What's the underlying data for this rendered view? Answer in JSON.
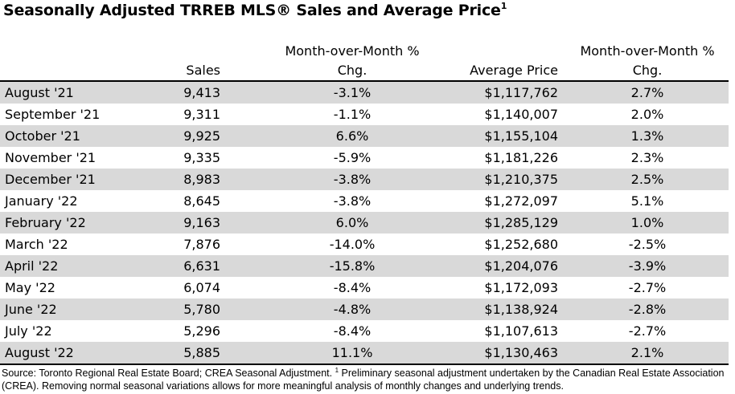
{
  "title": {
    "text": "Seasonally Adjusted TRREB MLS® Sales and Average Price",
    "superscript": "1"
  },
  "chart_data": {
    "type": "table",
    "columns": [
      "",
      "Sales",
      "Month-over-Month % Chg.",
      "Average Price",
      "Month-over-Month % Chg."
    ],
    "header": {
      "sales": "Sales",
      "mom_line1": "Month-over-Month %",
      "mom_line2": "Chg.",
      "avg_price": "Average Price",
      "mom2_line1": "Month-over-Month %",
      "mom2_line2": "Chg."
    },
    "rows": [
      {
        "month": "August '21",
        "sales": "9,413",
        "sales_mom": "-3.1%",
        "avg_price": "$1,117,762",
        "price_mom": "2.7%"
      },
      {
        "month": "September '21",
        "sales": "9,311",
        "sales_mom": "-1.1%",
        "avg_price": "$1,140,007",
        "price_mom": "2.0%"
      },
      {
        "month": "October '21",
        "sales": "9,925",
        "sales_mom": "6.6%",
        "avg_price": "$1,155,104",
        "price_mom": "1.3%"
      },
      {
        "month": "November '21",
        "sales": "9,335",
        "sales_mom": "-5.9%",
        "avg_price": "$1,181,226",
        "price_mom": "2.3%"
      },
      {
        "month": "December '21",
        "sales": "8,983",
        "sales_mom": "-3.8%",
        "avg_price": "$1,210,375",
        "price_mom": "2.5%"
      },
      {
        "month": "January '22",
        "sales": "8,645",
        "sales_mom": "-3.8%",
        "avg_price": "$1,272,097",
        "price_mom": "5.1%"
      },
      {
        "month": "February '22",
        "sales": "9,163",
        "sales_mom": "6.0%",
        "avg_price": "$1,285,129",
        "price_mom": "1.0%"
      },
      {
        "month": "March '22",
        "sales": "7,876",
        "sales_mom": "-14.0%",
        "avg_price": "$1,252,680",
        "price_mom": "-2.5%"
      },
      {
        "month": "April '22",
        "sales": "6,631",
        "sales_mom": "-15.8%",
        "avg_price": "$1,204,076",
        "price_mom": "-3.9%"
      },
      {
        "month": "May '22",
        "sales": "6,074",
        "sales_mom": "-8.4%",
        "avg_price": "$1,172,093",
        "price_mom": "-2.7%"
      },
      {
        "month": "June '22",
        "sales": "5,780",
        "sales_mom": "-4.8%",
        "avg_price": "$1,138,924",
        "price_mom": "-2.8%"
      },
      {
        "month": "July '22",
        "sales": "5,296",
        "sales_mom": "-8.4%",
        "avg_price": "$1,107,613",
        "price_mom": "-2.7%"
      },
      {
        "month": "August '22",
        "sales": "5,885",
        "sales_mom": "11.1%",
        "avg_price": "$1,130,463",
        "price_mom": "2.1%"
      }
    ],
    "row_shading": "alternating",
    "shade_color": "#d9d9d9"
  },
  "source": {
    "text_before_sup": "Source: Toronto Regional Real Estate Board; CREA Seasonal Adjustment. ",
    "sup": "1",
    "text_after_sup": " Preliminary seasonal adjustment undertaken by the Canadian Real Estate Association (CREA).  Removing normal seasonal variations allows for more meaningful analysis of monthly changes and underlying trends."
  }
}
